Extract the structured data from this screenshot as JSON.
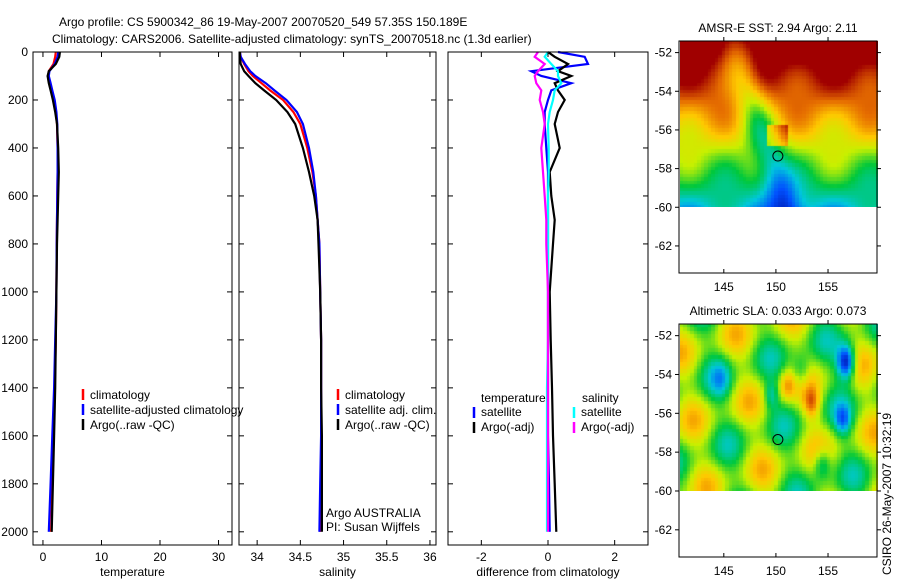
{
  "header": {
    "title_line1": "Argo profile: CS 5900342_86 19-May-2007 20070520_549 57.35S 150.189E",
    "title_line2": "Climatology: CARS2006. Satellite-adjusted climatology: synTS_20070518.nc (1.3d earlier)"
  },
  "footer_stamp": "CSIRO 26-May-2007 10:32:19",
  "chart_data": [
    {
      "type": "line",
      "id": "temperature",
      "xlabel": "temperature",
      "ylabel": "",
      "xlim": [
        -1.7,
        32.3
      ],
      "ylim": [
        2055,
        0
      ],
      "xticks": [
        0,
        10,
        20,
        30
      ],
      "yticks": [
        0,
        200,
        400,
        600,
        800,
        1000,
        1200,
        1400,
        1600,
        1800,
        2000
      ],
      "depth": [
        0,
        20,
        50,
        80,
        100,
        130,
        160,
        200,
        250,
        300,
        400,
        500,
        600,
        700,
        800,
        1000,
        1200,
        1400,
        1600,
        1800,
        2000
      ],
      "series": [
        {
          "name": "climatology",
          "color": "#ff0000",
          "values": [
            2.2,
            2.1,
            1.8,
            1.0,
            0.9,
            1.2,
            1.5,
            1.9,
            2.2,
            2.4,
            2.5,
            2.5,
            2.45,
            2.4,
            2.35,
            2.3,
            2.2,
            2.0,
            1.8,
            1.6,
            1.4
          ]
        },
        {
          "name": "satellite-adjusted climatology",
          "color": "#0000ff",
          "values": [
            2.6,
            2.5,
            2.0,
            1.1,
            1.0,
            1.3,
            1.6,
            2.0,
            2.3,
            2.45,
            2.5,
            2.5,
            2.45,
            2.4,
            2.35,
            2.3,
            2.1,
            1.9,
            1.6,
            1.3,
            1.0
          ]
        },
        {
          "name": "Argo(..raw -QC)",
          "color": "#000000",
          "values": [
            2.9,
            2.8,
            2.2,
            1.0,
            0.8,
            1.0,
            1.3,
            1.7,
            2.1,
            2.4,
            2.6,
            2.7,
            2.6,
            2.5,
            2.4,
            2.3,
            2.2,
            2.1,
            1.9,
            1.7,
            1.5
          ]
        }
      ],
      "legend": [
        "climatology",
        "satellite-adjusted climatology",
        "Argo(..raw -QC)"
      ]
    },
    {
      "type": "line",
      "id": "salinity",
      "xlabel": "salinity",
      "xlim": [
        33.79,
        36.07
      ],
      "ylim": [
        2055,
        0
      ],
      "xticks": [
        34,
        34.5,
        35,
        35.5,
        36
      ],
      "xticklabels": [
        "34",
        "34.5",
        "35",
        "35.5",
        "36"
      ],
      "depth": [
        0,
        20,
        50,
        80,
        100,
        130,
        160,
        200,
        250,
        300,
        400,
        500,
        600,
        700,
        800,
        1000,
        1200,
        1400,
        1600,
        1800,
        2000
      ],
      "series": [
        {
          "name": "climatology",
          "color": "#ff0000",
          "values": [
            33.8,
            33.81,
            33.85,
            33.9,
            33.95,
            34.05,
            34.15,
            34.3,
            34.42,
            34.5,
            34.58,
            34.64,
            34.68,
            34.7,
            34.72,
            34.73,
            34.74,
            34.74,
            34.74,
            34.74,
            34.73
          ]
        },
        {
          "name": "satellite adj. clim.",
          "color": "#0000ff",
          "values": [
            33.8,
            33.81,
            33.86,
            33.92,
            33.98,
            34.1,
            34.2,
            34.34,
            34.46,
            34.53,
            34.6,
            34.65,
            34.68,
            34.7,
            34.72,
            34.73,
            34.74,
            34.74,
            34.74,
            34.73,
            34.72
          ]
        },
        {
          "name": "Argo(..raw -QC)",
          "color": "#000000",
          "values": [
            33.8,
            33.8,
            33.81,
            33.85,
            33.9,
            33.98,
            34.08,
            34.22,
            34.35,
            34.44,
            34.53,
            34.6,
            34.66,
            34.7,
            34.71,
            34.73,
            34.74,
            34.74,
            34.75,
            34.75,
            34.75
          ]
        }
      ],
      "legend": [
        "climatology",
        "satellite adj. clim.",
        "Argo(..raw -QC)"
      ],
      "annotation": [
        "Argo AUSTRALIA",
        "PI: Susan Wijffels"
      ]
    },
    {
      "type": "line",
      "id": "difference",
      "xlabel": "difference from climatology",
      "xlim": [
        -3,
        3
      ],
      "ylim": [
        2055,
        0
      ],
      "xticks": [
        -2,
        0,
        2
      ],
      "depth": [
        0,
        20,
        50,
        80,
        100,
        130,
        160,
        200,
        250,
        300,
        400,
        500,
        600,
        700,
        800,
        1000,
        1200,
        1400,
        1600,
        1800,
        2000
      ],
      "series": [
        {
          "name": "temperature satellite",
          "color": "#0000ff",
          "values": [
            0.3,
            1.1,
            1.2,
            -0.5,
            -0.2,
            0.7,
            0.1,
            0.0,
            -0.1,
            -0.1,
            -0.05,
            0,
            0,
            0,
            0,
            0,
            0,
            0,
            0,
            0.03,
            0.05
          ]
        },
        {
          "name": "temperature Argo(-adj)",
          "color": "#000000",
          "values": [
            0,
            0.2,
            0.6,
            0.3,
            0.7,
            0.2,
            0.3,
            0.5,
            0.3,
            0.2,
            0.35,
            0.05,
            0.1,
            0.2,
            0.15,
            0.05,
            0.08,
            0.12,
            0.15,
            0.2,
            0.25
          ]
        },
        {
          "name": "salinity satellite",
          "color": "#00ffff",
          "values": [
            0,
            -0.1,
            0.1,
            0.3,
            0.3,
            0.4,
            0.2,
            0.15,
            0.05,
            0.0,
            0.02,
            0.02,
            0,
            0,
            0,
            0,
            0,
            -0.03,
            -0.03,
            -0.03,
            -0.03
          ]
        },
        {
          "name": "salinity Argo(-adj)",
          "color": "#ff00ff",
          "values": [
            -0.3,
            -0.4,
            -0.1,
            -0.3,
            -0.4,
            -0.35,
            -0.2,
            -0.25,
            -0.15,
            -0.1,
            -0.2,
            -0.15,
            -0.1,
            -0.05,
            -0.05,
            0,
            0,
            0,
            0,
            0,
            0
          ]
        }
      ],
      "legend": {
        "temperature_heading": "temperature",
        "salinity_heading": "salinity",
        "temperature_items": [
          "satellite",
          "Argo(-adj)"
        ],
        "salinity_items": [
          "satellite",
          "Argo(-adj)"
        ]
      }
    },
    {
      "type": "heatmap",
      "id": "sst_map",
      "title": "AMSR-E SST: 2.94 Argo: 2.11",
      "xlim": [
        140.7,
        159.7
      ],
      "ylim": [
        -63.4,
        -51.4
      ],
      "data_extent_lat": [
        -60,
        -51.4
      ],
      "xticks": [
        145,
        150,
        155
      ],
      "yticks": [
        -52,
        -54,
        -56,
        -58,
        -60,
        -62
      ],
      "marker": {
        "lon": 150.189,
        "lat": -57.35
      }
    },
    {
      "type": "heatmap",
      "id": "sla_map",
      "title": "Altimetric SLA: 0.033 Argo: 0.073",
      "xlim": [
        140.7,
        159.7
      ],
      "ylim": [
        -63.4,
        -51.4
      ],
      "data_extent_lat": [
        -60,
        -51.4
      ],
      "xticks": [
        145,
        150,
        155
      ],
      "yticks": [
        -52,
        -54,
        -56,
        -58,
        -60,
        -62
      ],
      "marker": {
        "lon": 150.189,
        "lat": -57.35
      }
    }
  ]
}
